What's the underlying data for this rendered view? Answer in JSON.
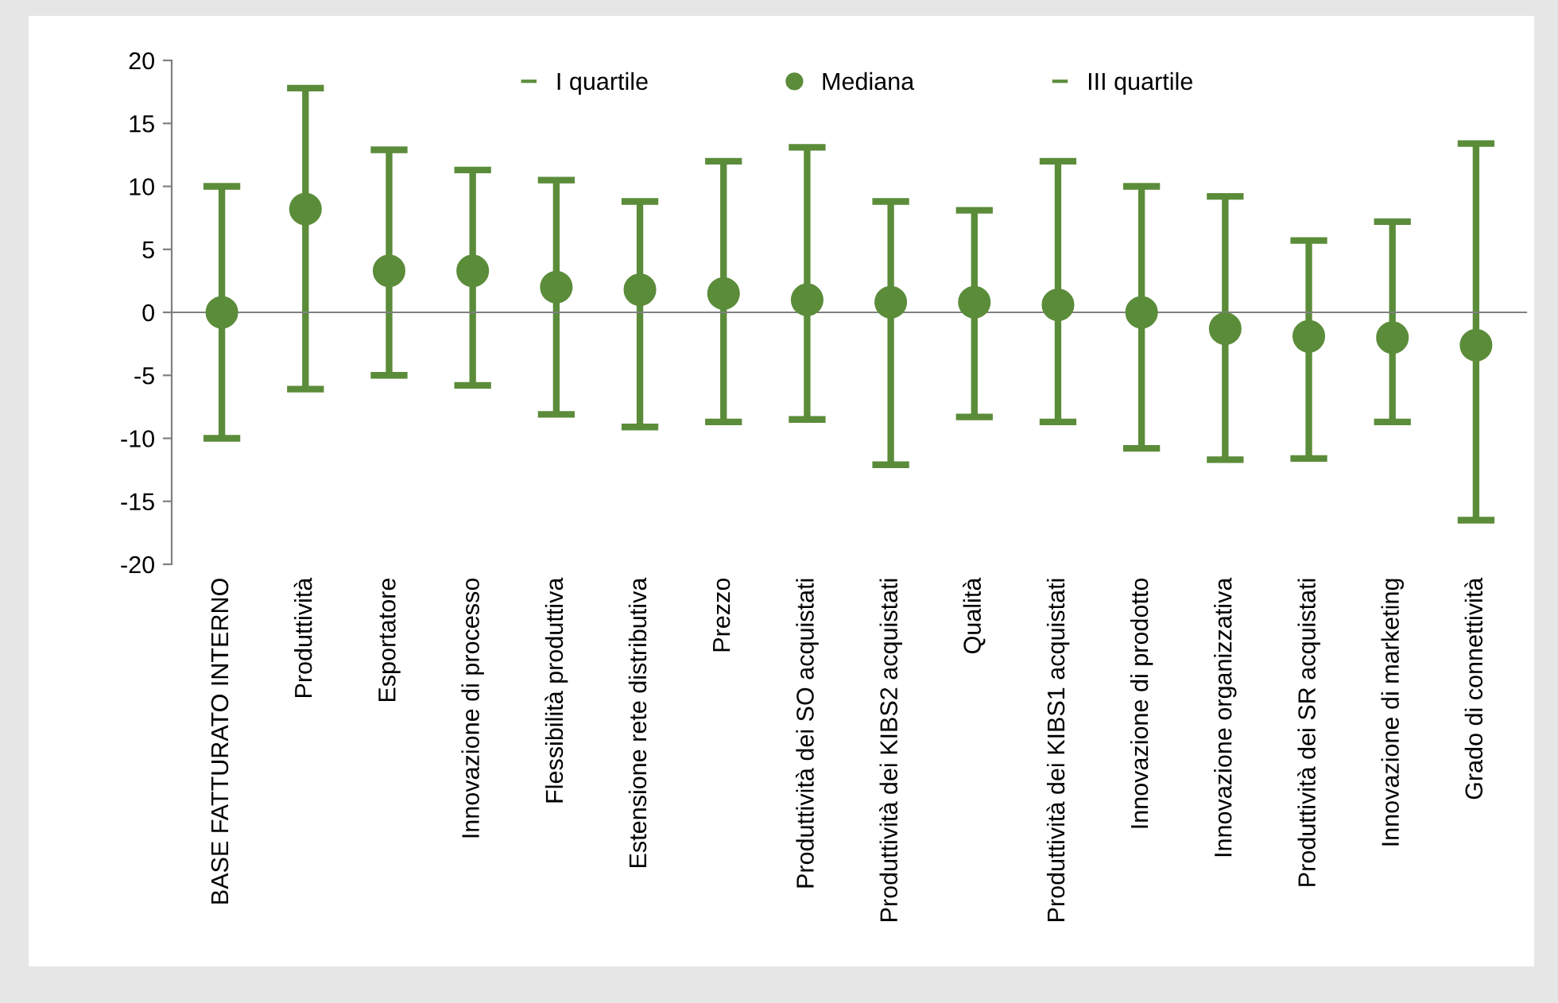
{
  "chart_data": {
    "type": "scatter",
    "categories": [
      "BASE FATTURATO INTERNO",
      "Produttività",
      "Esportatore",
      "Innovazione di processo",
      "Flessibilità produttiva",
      "Estensione rete distributiva",
      "Prezzo",
      "Produttività dei SO acquistati",
      "Produttività dei KIBS2 acquistati",
      "Qualità",
      "Produttività dei KIBS1 acquistati",
      "Innovazione di prodotto",
      "Innovazione organizzativa",
      "Produttività dei SR acquistati",
      "Innovazione di marketing",
      "Grado di connettività"
    ],
    "series": [
      {
        "name": "Mediana",
        "color": "#5b8c3a",
        "marker": "circle",
        "values": [
          0.0,
          8.2,
          3.3,
          3.3,
          2.0,
          1.8,
          1.5,
          1.0,
          0.8,
          0.8,
          0.6,
          0.0,
          -1.3,
          -1.9,
          -2.0,
          -2.6
        ],
        "errors": [
          [
            -10.0,
            10.0
          ],
          [
            -6.1,
            17.8
          ],
          [
            -5.0,
            12.9
          ],
          [
            -5.8,
            11.3
          ],
          [
            -8.1,
            10.5
          ],
          [
            -9.1,
            8.8
          ],
          [
            -8.7,
            12.0
          ],
          [
            -8.5,
            13.1
          ],
          [
            -12.1,
            8.8
          ],
          [
            -8.3,
            8.1
          ],
          [
            -8.7,
            12.0
          ],
          [
            -10.8,
            10.0
          ],
          [
            -11.7,
            9.2
          ],
          [
            -11.6,
            5.7
          ],
          [
            -8.7,
            7.2
          ],
          [
            -16.5,
            13.4
          ]
        ]
      }
    ],
    "annotations": [
      "I quartile",
      "III quartile"
    ],
    "ylim": [
      -20,
      20
    ],
    "yticks": [
      -20,
      -15,
      -10,
      -5,
      0,
      5,
      10,
      15,
      20
    ],
    "grid": false,
    "legend": "top"
  }
}
